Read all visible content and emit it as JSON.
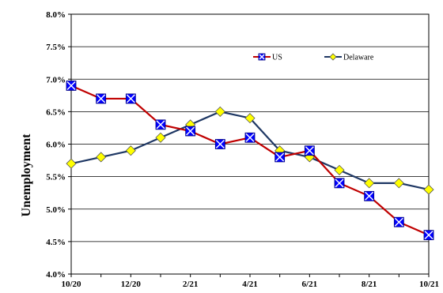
{
  "chart_data": {
    "type": "line",
    "title": "",
    "xlabel": "",
    "ylabel": "Unemployment",
    "ylim": [
      4.0,
      8.0
    ],
    "yticks": [
      "4.0%",
      "4.5%",
      "5.0%",
      "5.5%",
      "6.0%",
      "6.5%",
      "7.0%",
      "7.5%",
      "8.0%"
    ],
    "x": [
      "10/20",
      "11/20",
      "12/20",
      "1/21",
      "2/21",
      "3/21",
      "4/21",
      "5/21",
      "6/21",
      "7/21",
      "8/21",
      "9/21",
      "10/21"
    ],
    "xtick_labels": [
      "10/20",
      "12/20",
      "2/21",
      "4/21",
      "6/21",
      "8/21",
      "10/21"
    ],
    "grid": "horizontal",
    "legend_position": "top-right",
    "series": [
      {
        "name": "US",
        "color": "#c00000",
        "marker_color": "#0000ff",
        "marker": "square-x",
        "values": [
          6.9,
          6.7,
          6.7,
          6.3,
          6.2,
          6.0,
          6.1,
          5.8,
          5.9,
          5.4,
          5.2,
          4.8,
          4.6
        ]
      },
      {
        "name": "Delaware",
        "color": "#1f3864",
        "marker_color": "#ffff00",
        "marker": "diamond",
        "values": [
          5.7,
          5.8,
          5.9,
          6.1,
          6.3,
          6.5,
          6.4,
          5.9,
          5.8,
          5.6,
          5.4,
          5.4,
          5.3
        ]
      }
    ]
  }
}
